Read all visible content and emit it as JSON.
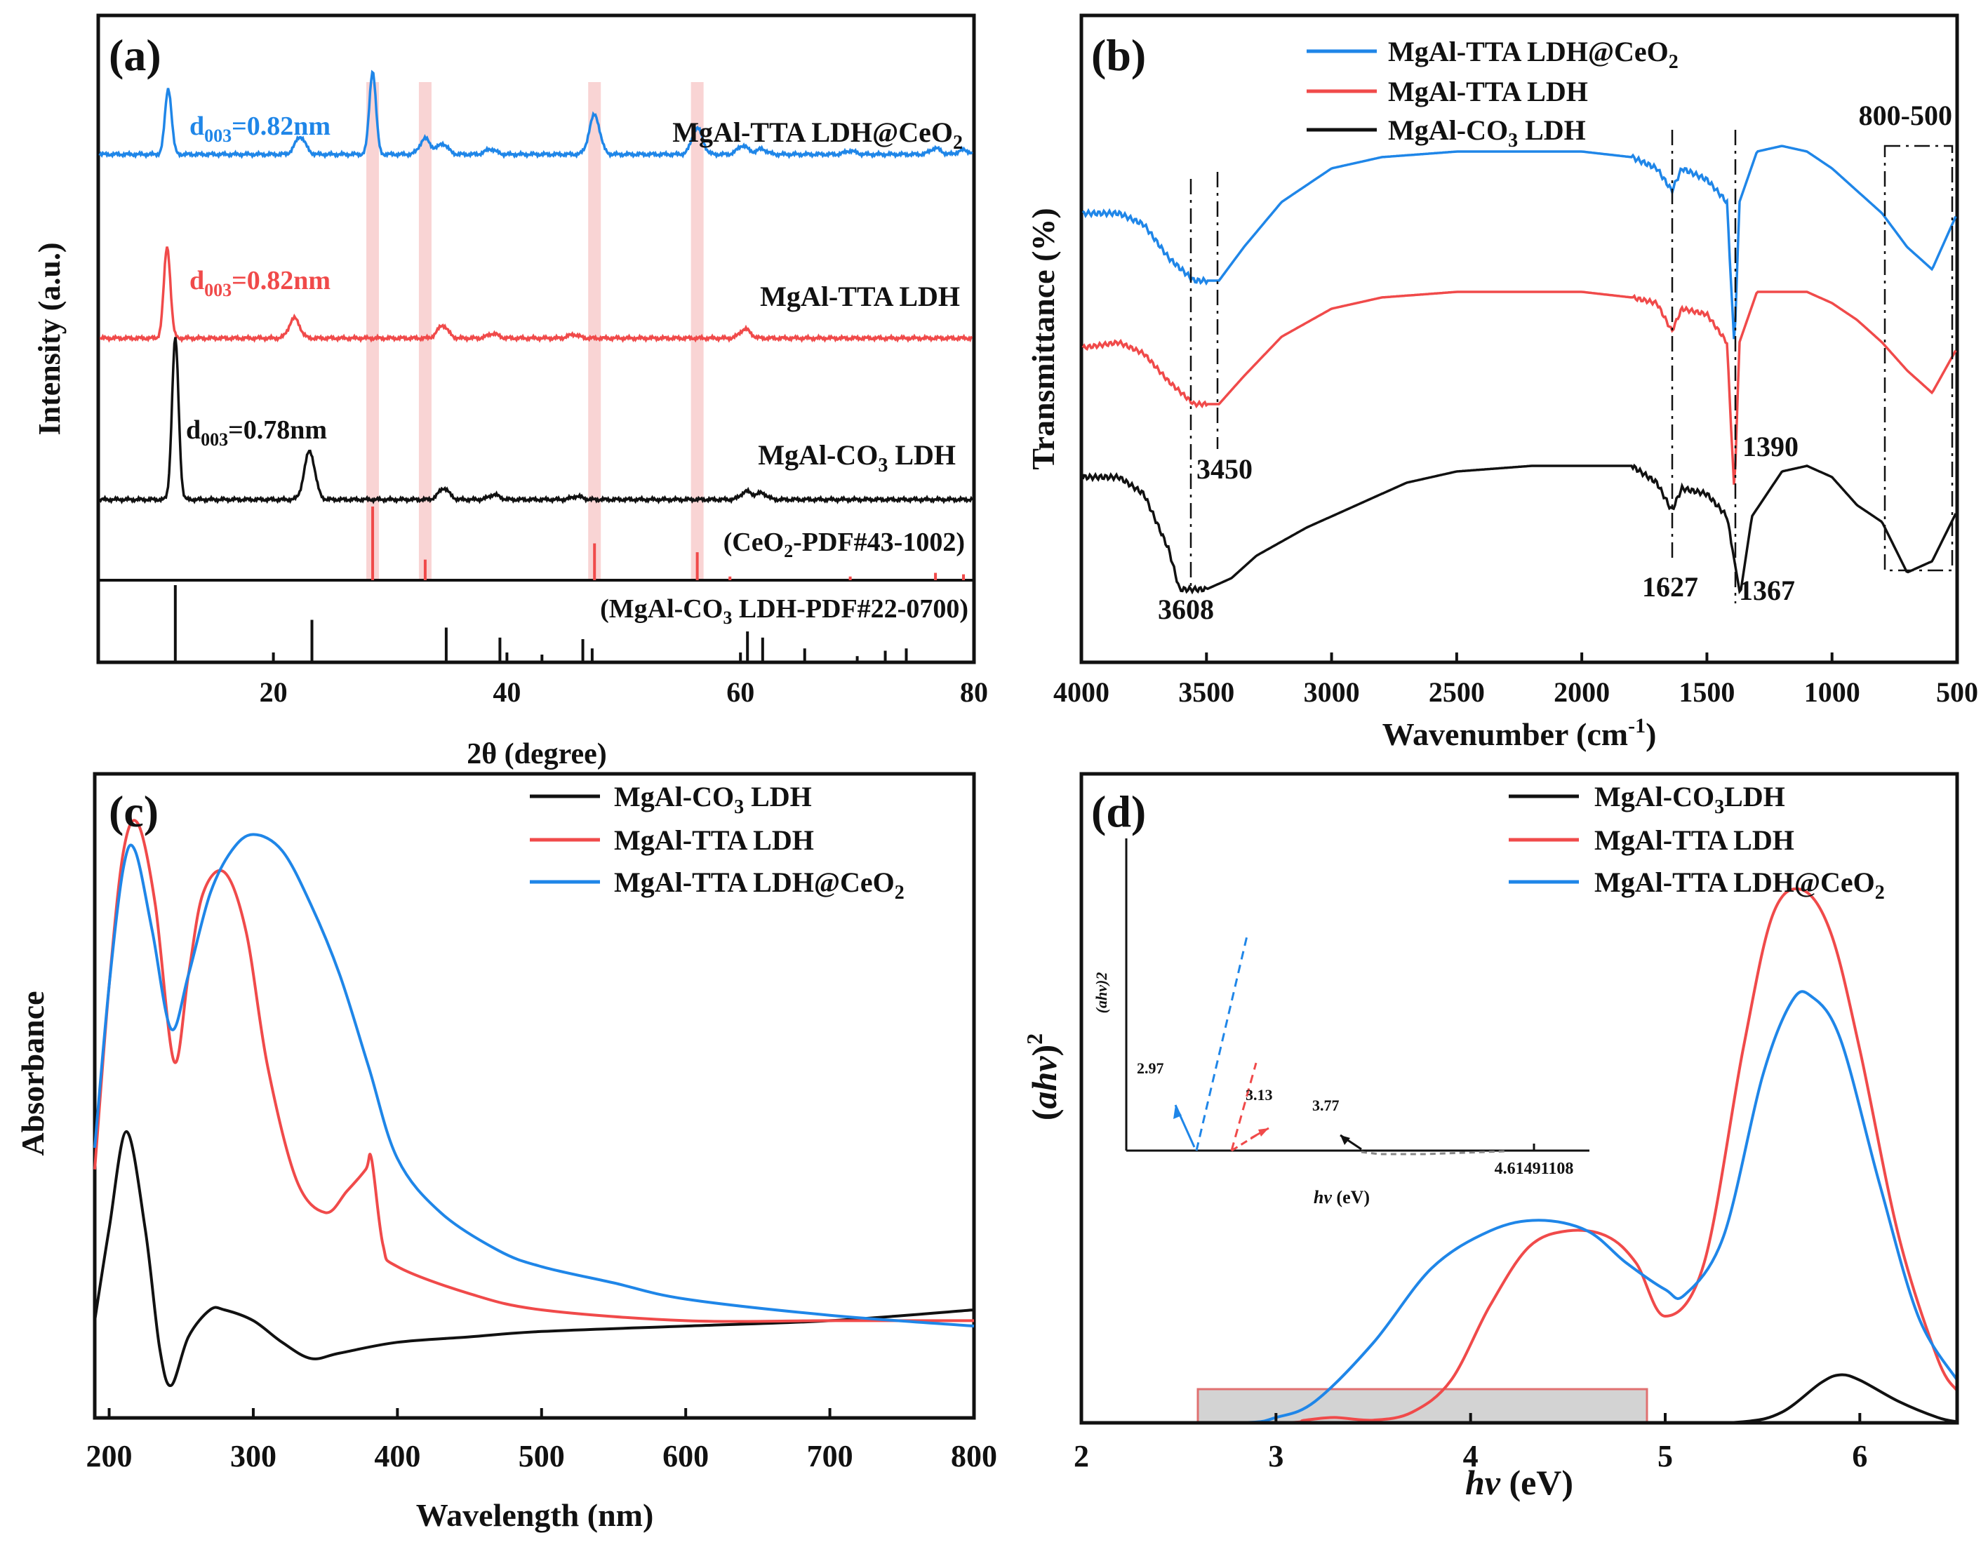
{
  "colors": {
    "black": "#111111",
    "red": "#f04a4a",
    "blue": "#1f86e8",
    "highlight": "#f7c9c9"
  },
  "chart_data": [
    {
      "panel": "(a)",
      "type": "line",
      "xlabel": "2θ (degree)",
      "ylabel": "Intensity (a.u.)",
      "xlim": [
        5,
        80
      ],
      "xticks": [
        20,
        40,
        60,
        80
      ],
      "highlight_bands_2theta": [
        28.5,
        33.0,
        47.5,
        56.3
      ],
      "series": [
        {
          "name": "MgAl-TTA LDH@CeO2",
          "color": "#1f86e8",
          "d_label": "d003=0.82nm",
          "peaks": [
            {
              "x": 11.0,
              "h": 0.75
            },
            {
              "x": 22.3,
              "h": 0.2
            },
            {
              "x": 28.5,
              "h": 0.95
            },
            {
              "x": 33.0,
              "h": 0.18
            },
            {
              "x": 34.5,
              "h": 0.12
            },
            {
              "x": 38.6,
              "h": 0.06
            },
            {
              "x": 47.5,
              "h": 0.45
            },
            {
              "x": 56.3,
              "h": 0.3
            },
            {
              "x": 60.2,
              "h": 0.1
            },
            {
              "x": 61.8,
              "h": 0.06
            },
            {
              "x": 69.4,
              "h": 0.04
            },
            {
              "x": 76.7,
              "h": 0.07
            },
            {
              "x": 79.1,
              "h": 0.05
            }
          ]
        },
        {
          "name": "MgAl-TTA LDH",
          "color": "#f04a4a",
          "d_label": "d003=0.82nm",
          "peaks": [
            {
              "x": 10.9,
              "h": 1.0
            },
            {
              "x": 21.8,
              "h": 0.22
            },
            {
              "x": 34.5,
              "h": 0.14
            },
            {
              "x": 38.8,
              "h": 0.05
            },
            {
              "x": 45.7,
              "h": 0.04
            },
            {
              "x": 60.4,
              "h": 0.1
            }
          ]
        },
        {
          "name": "MgAl-CO3 LDH",
          "color": "#111111",
          "d_label": "d003=0.78nm",
          "peaks": [
            {
              "x": 11.6,
              "h": 1.0
            },
            {
              "x": 23.1,
              "h": 0.3
            },
            {
              "x": 34.6,
              "h": 0.07
            },
            {
              "x": 38.9,
              "h": 0.03
            },
            {
              "x": 46.0,
              "h": 0.02
            },
            {
              "x": 60.5,
              "h": 0.05
            },
            {
              "x": 61.8,
              "h": 0.04
            }
          ]
        }
      ],
      "reference_ceo2": {
        "label": "(CeO2-PDF#43-1002)",
        "x": [
          28.5,
          33.0,
          47.5,
          56.3,
          59.1,
          69.4,
          76.7,
          79.1
        ],
        "h": [
          1.0,
          0.28,
          0.5,
          0.38,
          0.05,
          0.05,
          0.1,
          0.08
        ]
      },
      "reference_mgal": {
        "label": "(MgAl-CO3 LDH-PDF#22-0700)",
        "x": [
          11.6,
          23.3,
          34.8,
          39.4,
          43.0,
          46.5,
          47.3,
          60.6,
          61.9,
          65.5,
          70.0,
          72.4,
          74.2
        ],
        "h": [
          1.0,
          0.55,
          0.45,
          0.32,
          0.1,
          0.3,
          0.18,
          0.4,
          0.32,
          0.18,
          0.08,
          0.15,
          0.18
        ]
      }
    },
    {
      "panel": "(b)",
      "type": "line",
      "xlabel": "Wavenumber (cm-1)",
      "ylabel": "Transmittance (%)",
      "xlim": [
        4000,
        500
      ],
      "xticks": [
        4000,
        3500,
        3000,
        2500,
        2000,
        1500,
        1000,
        500
      ],
      "series": [
        {
          "name": "MgAl-TTA LDH@CeO2",
          "color": "#1f86e8",
          "x": [
            4000,
            3850,
            3750,
            3650,
            3550,
            3450,
            3350,
            3200,
            3000,
            2800,
            2500,
            2200,
            2000,
            1800,
            1700,
            1640,
            1600,
            1500,
            1420,
            1390,
            1370,
            1300,
            1200,
            1100,
            1000,
            900,
            800,
            700,
            600,
            500
          ],
          "y": [
            72,
            72,
            70,
            64,
            60,
            60,
            66,
            74,
            80,
            82,
            83,
            83,
            83,
            82,
            80,
            76,
            80,
            78,
            74,
            48,
            74,
            83,
            84,
            83,
            80,
            76,
            72,
            66,
            62,
            72
          ]
        },
        {
          "name": "MgAl-TTA LDH",
          "color": "#f04a4a",
          "x": [
            4000,
            3850,
            3750,
            3650,
            3550,
            3450,
            3350,
            3200,
            3000,
            2800,
            2500,
            2200,
            2000,
            1800,
            1700,
            1640,
            1600,
            1500,
            1420,
            1390,
            1370,
            1300,
            1200,
            1100,
            1000,
            900,
            800,
            700,
            600,
            500
          ],
          "y": [
            48,
            49,
            47,
            42,
            38,
            38,
            43,
            50,
            55,
            57,
            58,
            58,
            58,
            57,
            56,
            51,
            55,
            54,
            49,
            22,
            49,
            58,
            58,
            58,
            56,
            53,
            49,
            44,
            40,
            48
          ]
        },
        {
          "name": "MgAl-CO3 LDH",
          "color": "#111111",
          "x": [
            4000,
            3850,
            3750,
            3650,
            3608,
            3500,
            3400,
            3300,
            3100,
            2900,
            2700,
            2500,
            2200,
            2000,
            1800,
            1700,
            1640,
            1600,
            1500,
            1420,
            1367,
            1320,
            1200,
            1100,
            1000,
            900,
            800,
            700,
            600,
            500
          ],
          "y": [
            25,
            25,
            22,
            12,
            5,
            5,
            7,
            11,
            16,
            20,
            24,
            26,
            27,
            27,
            27,
            24,
            19,
            23,
            22,
            18,
            4,
            18,
            26,
            27,
            25,
            20,
            17,
            8,
            10,
            19
          ]
        }
      ],
      "annotations": [
        "800-500",
        "3450",
        "3608",
        "1390",
        "1627",
        "1367"
      ]
    },
    {
      "panel": "(c)",
      "type": "line",
      "xlabel": "Wavelength (nm)",
      "ylabel": "Absorbance",
      "xlim": [
        190,
        800
      ],
      "xticks": [
        200,
        300,
        400,
        500,
        600,
        700,
        800
      ],
      "series": [
        {
          "name": "MgAl-CO3 LDH",
          "color": "#111111",
          "x": [
            190,
            200,
            212,
            225,
            235,
            243,
            255,
            270,
            280,
            300,
            320,
            340,
            360,
            400,
            450,
            500,
            600,
            700,
            800
          ],
          "y": [
            0.18,
            0.35,
            0.53,
            0.35,
            0.13,
            0.06,
            0.15,
            0.2,
            0.2,
            0.18,
            0.14,
            0.11,
            0.12,
            0.14,
            0.15,
            0.16,
            0.17,
            0.18,
            0.2
          ]
        },
        {
          "name": "MgAl-TTA LDH",
          "color": "#f04a4a",
          "x": [
            190,
            200,
            210,
            220,
            232,
            245,
            255,
            265,
            280,
            295,
            310,
            330,
            350,
            365,
            378,
            382,
            390,
            400,
            450,
            500,
            600,
            700,
            800
          ],
          "y": [
            0.46,
            0.8,
            1.05,
            1.1,
            0.95,
            0.66,
            0.82,
            0.97,
            1.01,
            0.9,
            0.65,
            0.44,
            0.38,
            0.42,
            0.46,
            0.48,
            0.32,
            0.28,
            0.23,
            0.2,
            0.18,
            0.18,
            0.18
          ]
        },
        {
          "name": "MgAl-TTA LDH@CeO2",
          "color": "#1f86e8",
          "x": [
            190,
            200,
            210,
            218,
            230,
            243,
            255,
            270,
            285,
            300,
            320,
            340,
            360,
            380,
            400,
            430,
            470,
            500,
            550,
            600,
            700,
            800
          ],
          "y": [
            0.5,
            0.8,
            1.02,
            1.05,
            0.9,
            0.72,
            0.82,
            0.97,
            1.05,
            1.08,
            1.05,
            0.95,
            0.82,
            0.65,
            0.48,
            0.38,
            0.31,
            0.28,
            0.25,
            0.22,
            0.19,
            0.17
          ]
        }
      ]
    },
    {
      "panel": "(d)",
      "type": "line",
      "xlabel": "hv (eV)",
      "ylabel": "(ahv)2",
      "xlim": [
        2,
        6.5
      ],
      "xticks": [
        2,
        3,
        4,
        5,
        6
      ],
      "series": [
        {
          "name": "MgAl-CO3LDH",
          "color": "#111111",
          "x": [
            2.0,
            3.0,
            4.0,
            5.0,
            5.4,
            5.6,
            5.8,
            5.9,
            6.0,
            6.2,
            6.4,
            6.5
          ],
          "y": [
            0,
            0,
            0,
            0,
            0.002,
            0.02,
            0.075,
            0.09,
            0.08,
            0.04,
            0.01,
            0.002
          ]
        },
        {
          "name": "MgAl-TTA LDH",
          "color": "#f04a4a",
          "x": [
            2.0,
            3.0,
            3.15,
            3.3,
            3.5,
            3.7,
            3.9,
            4.1,
            4.3,
            4.5,
            4.7,
            4.85,
            5.0,
            5.2,
            5.4,
            5.55,
            5.7,
            5.85,
            6.0,
            6.2,
            6.4,
            6.5
          ],
          "y": [
            0,
            0,
            0.005,
            0.01,
            0.005,
            0.02,
            0.08,
            0.22,
            0.33,
            0.36,
            0.35,
            0.3,
            0.2,
            0.3,
            0.7,
            0.95,
            1.0,
            0.92,
            0.7,
            0.35,
            0.12,
            0.06
          ]
        },
        {
          "name": "MgAl-TTA LDH@CeO2",
          "color": "#1f86e8",
          "x": [
            2.0,
            2.8,
            3.0,
            3.2,
            3.5,
            3.8,
            4.1,
            4.35,
            4.6,
            4.8,
            5.0,
            5.1,
            5.3,
            5.5,
            5.65,
            5.75,
            5.9,
            6.1,
            6.3,
            6.5
          ],
          "y": [
            0,
            0,
            0.01,
            0.04,
            0.15,
            0.29,
            0.36,
            0.38,
            0.36,
            0.3,
            0.25,
            0.24,
            0.35,
            0.65,
            0.79,
            0.8,
            0.72,
            0.45,
            0.2,
            0.08
          ]
        }
      ],
      "inset": {
        "ylabel": "(ahv)2",
        "xlabel": "hv (eV)",
        "tick_label": "4.61491108",
        "marks": [
          "2.97",
          "3.13",
          "3.77"
        ]
      }
    }
  ],
  "panels": {
    "a": {
      "label": "(a)",
      "d_blue": "d003=0.82nm",
      "d_red": "d003=0.82nm",
      "d_black": "d003=0.78nm",
      "name_blue": "MgAl-TTA LDH@CeO2",
      "name_red": "MgAl-TTA LDH",
      "name_black": "MgAl-CO3 LDH",
      "ref1": "(CeO2-PDF#43-1002)",
      "ref2": "(MgAl-CO3 LDH-PDF#22-0700)",
      "ylabel": "Intensity (a.u.)",
      "xlabel": "2θ (degree)"
    },
    "b": {
      "label": "(b)",
      "ylabel": "Transmittance (%)",
      "xlabel": "Wavenumber (cm-1)",
      "box_label": "800-500",
      "ann_3450": "3450",
      "ann_3608": "3608",
      "ann_1390": "1390",
      "ann_1627": "1627",
      "ann_1367": "1367",
      "legend": [
        "MgAl-TTA LDH@CeO2",
        "MgAl-TTA LDH",
        "MgAl-CO3 LDH"
      ]
    },
    "c": {
      "label": "(c)",
      "ylabel": "Absorbance",
      "xlabel": "Wavelength (nm)",
      "legend": [
        "MgAl-CO3 LDH",
        "MgAl-TTA LDH",
        "MgAl-TTA LDH@CeO2"
      ]
    },
    "d": {
      "label": "(d)",
      "ylabel": "(ahv)2",
      "xlabel": "hv (eV)",
      "legend": [
        "MgAl-CO3LDH",
        "MgAl-TTA LDH",
        "MgAl-TTA LDH@CeO2"
      ],
      "inset_ylabel": "(ahv)2",
      "inset_xlabel": "hv (eV)",
      "inset_tick": "4.61491108",
      "inset_297": "2.97",
      "inset_313": "3.13",
      "inset_377": "3.77"
    }
  }
}
